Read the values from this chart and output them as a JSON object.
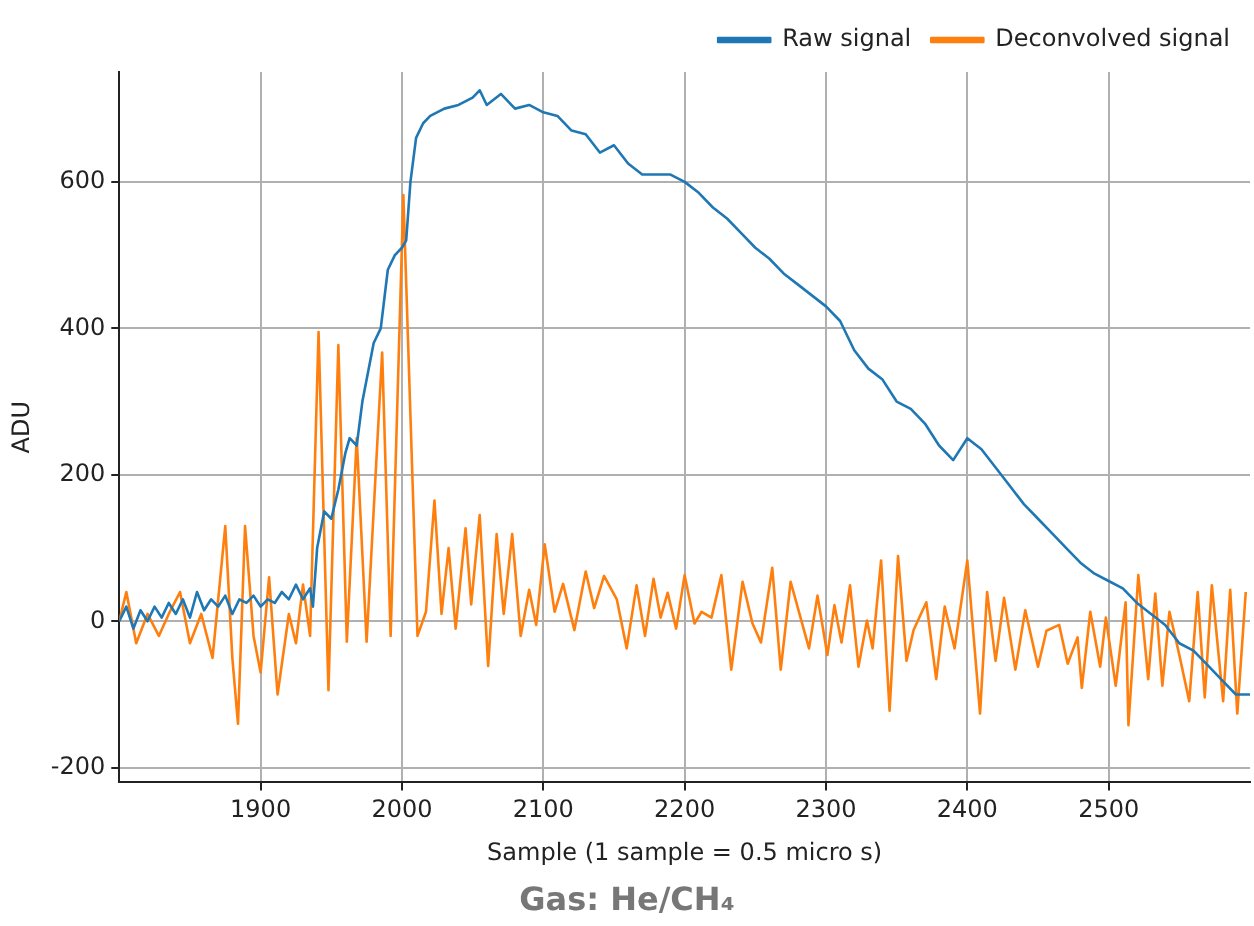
{
  "chart_data": {
    "type": "line",
    "xlabel": "Sample (1 sample = 0.5 micro s)",
    "ylabel": "ADU",
    "annotations": [
      "Gas: He/CH₄"
    ],
    "xlim": [
      1800,
      2600
    ],
    "ylim": [
      -220,
      750
    ],
    "xticks": [
      1900,
      2000,
      2100,
      2200,
      2300,
      2400,
      2500
    ],
    "yticks": [
      -200,
      0,
      200,
      400,
      600
    ],
    "grid": true,
    "legend": "top right",
    "marker": "none",
    "line_style": "solid",
    "series": [
      {
        "name": "Raw signal",
        "color": "#1f77b4",
        "x": [
          1800,
          1805,
          1810,
          1815,
          1820,
          1825,
          1830,
          1835,
          1840,
          1845,
          1850,
          1855,
          1860,
          1865,
          1870,
          1875,
          1880,
          1885,
          1890,
          1895,
          1900,
          1905,
          1910,
          1915,
          1920,
          1925,
          1930,
          1935,
          1937,
          1940,
          1945,
          1950,
          1955,
          1960,
          1963,
          1968,
          1972,
          1976,
          1980,
          1985,
          1990,
          1995,
          2000,
          2003,
          2006,
          2010,
          2015,
          2020,
          2030,
          2040,
          2050,
          2055,
          2060,
          2070,
          2080,
          2090,
          2100,
          2110,
          2120,
          2130,
          2140,
          2150,
          2160,
          2170,
          2180,
          2190,
          2200,
          2210,
          2220,
          2230,
          2240,
          2250,
          2260,
          2270,
          2280,
          2290,
          2300,
          2310,
          2320,
          2330,
          2340,
          2350,
          2360,
          2370,
          2380,
          2390,
          2400,
          2410,
          2420,
          2430,
          2440,
          2450,
          2460,
          2470,
          2480,
          2490,
          2500,
          2510,
          2520,
          2530,
          2540,
          2550,
          2560,
          2570,
          2580,
          2590,
          2600
        ],
        "values": [
          0,
          20,
          -10,
          15,
          0,
          20,
          5,
          25,
          10,
          30,
          5,
          40,
          15,
          30,
          20,
          35,
          10,
          30,
          25,
          35,
          20,
          30,
          25,
          40,
          30,
          50,
          30,
          45,
          20,
          100,
          150,
          140,
          180,
          230,
          250,
          240,
          300,
          340,
          380,
          400,
          480,
          500,
          510,
          520,
          600,
          660,
          680,
          690,
          700,
          705,
          715,
          725,
          705,
          720,
          700,
          705,
          695,
          690,
          670,
          665,
          640,
          650,
          625,
          610,
          610,
          610,
          600,
          585,
          565,
          550,
          530,
          510,
          495,
          475,
          460,
          445,
          430,
          410,
          370,
          345,
          330,
          300,
          290,
          270,
          240,
          220,
          250,
          235,
          210,
          185,
          160,
          140,
          120,
          100,
          80,
          65,
          55,
          45,
          25,
          10,
          -5,
          -30,
          -40,
          -60,
          -80,
          -100,
          -100
        ]
      },
      {
        "name": "Deconvolved signal",
        "color": "#ff7f0e",
        "x": [
          1800,
          1805,
          1812,
          1820,
          1828,
          1835,
          1843,
          1850,
          1858,
          1866,
          1875,
          1880,
          1884,
          1889,
          1895,
          1900,
          1906,
          1912,
          1920,
          1925,
          1930,
          1935,
          1941,
          1948,
          1955,
          1961,
          1968,
          1975,
          1986,
          1992,
          2001,
          2011,
          2017,
          2023,
          2028,
          2033,
          2038,
          2045,
          2049,
          2055,
          2061,
          2067,
          2072,
          2078,
          2084,
          2090,
          2095,
          2101,
          2108,
          2114,
          2122,
          2130,
          2136,
          2143,
          2152,
          2159,
          2166,
          2172,
          2178,
          2183,
          2188,
          2194,
          2200,
          2207,
          2212,
          2219,
          2226,
          2233,
          2241,
          2248,
          2254,
          2262,
          2268,
          2275,
          2282,
          2288,
          2294,
          2301,
          2306,
          2311,
          2317,
          2323,
          2329,
          2333,
          2339,
          2345,
          2351,
          2357,
          2362,
          2371,
          2378,
          2384,
          2391,
          2400,
          2409,
          2414,
          2420,
          2426,
          2434,
          2441,
          2450,
          2456,
          2465,
          2471,
          2478,
          2481,
          2487,
          2494,
          2498,
          2505,
          2512,
          2514,
          2521,
          2528,
          2533,
          2538,
          2543,
          2550,
          2557,
          2563,
          2568,
          2573,
          2581,
          2586,
          2591,
          2597
        ],
        "values": [
          0,
          40,
          -30,
          10,
          -20,
          10,
          40,
          -30,
          10,
          -50,
          130,
          -50,
          -140,
          130,
          -20,
          -70,
          60,
          -100,
          10,
          -30,
          50,
          -20,
          395,
          -94,
          377,
          -28,
          250,
          -28,
          367,
          -20,
          582,
          -20,
          13,
          165,
          10,
          100,
          -10,
          127,
          23,
          145,
          -61,
          119,
          10,
          119,
          -20,
          43,
          -5,
          105,
          13,
          51,
          -12,
          68,
          18,
          62,
          30,
          -37,
          49,
          -20,
          58,
          5,
          39,
          -10,
          63,
          -3,
          13,
          5,
          63,
          -66,
          54,
          -3,
          -29,
          73,
          -66,
          54,
          5,
          -37,
          35,
          -46,
          22,
          -29,
          49,
          -62,
          1,
          -37,
          83,
          -122,
          89,
          -54,
          -12,
          26,
          -79,
          20,
          -37,
          83,
          -126,
          40,
          -54,
          32,
          -66,
          15,
          -62,
          -13,
          -5,
          -58,
          -22,
          -91,
          13,
          -62,
          5,
          -88,
          26,
          -142,
          63,
          -79,
          38,
          -88,
          13,
          -46,
          -109,
          40,
          -104,
          49,
          -109,
          43,
          -126,
          40
        ]
      }
    ]
  }
}
